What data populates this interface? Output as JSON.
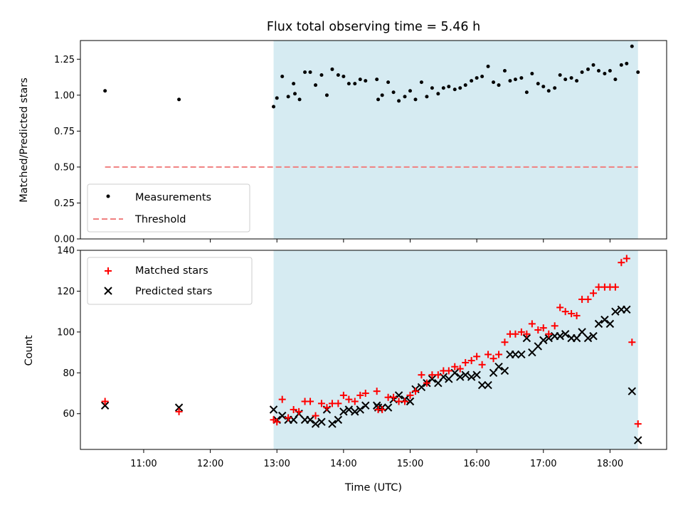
{
  "chart_data": [
    {
      "type": "scatter",
      "title": "Flux total observing time = 5.46 h",
      "xlabel": "",
      "ylabel": "Matched/Predicted stars",
      "xlim_hours": [
        10.05,
        18.85
      ],
      "ylim": [
        0,
        1.38
      ],
      "yticks": [
        0,
        0.25,
        0.5,
        0.75,
        1.0,
        1.25
      ],
      "ytick_labels": [
        "0.00",
        "0.25",
        "0.50",
        "0.75",
        "1.00",
        "1.25"
      ],
      "shaded_interval_hours": [
        12.95,
        18.42
      ],
      "threshold": {
        "name": "Threshold",
        "value": 0.5,
        "x_range_hours": [
          10.42,
          18.42
        ],
        "color": "#f08080"
      },
      "legend": {
        "location": "lower-left",
        "entries": [
          "Measurements",
          "Threshold"
        ]
      },
      "series": [
        {
          "name": "Measurements",
          "color": "#000000",
          "points": [
            [
              10.42,
              1.03
            ],
            [
              11.53,
              0.97
            ],
            [
              12.95,
              0.92
            ],
            [
              13.0,
              0.98
            ],
            [
              13.08,
              1.13
            ],
            [
              13.17,
              0.99
            ],
            [
              13.25,
              1.08
            ],
            [
              13.27,
              1.01
            ],
            [
              13.34,
              0.97
            ],
            [
              13.42,
              1.16
            ],
            [
              13.5,
              1.16
            ],
            [
              13.58,
              1.07
            ],
            [
              13.67,
              1.14
            ],
            [
              13.75,
              1.0
            ],
            [
              13.83,
              1.18
            ],
            [
              13.92,
              1.14
            ],
            [
              14.0,
              1.13
            ],
            [
              14.08,
              1.08
            ],
            [
              14.17,
              1.08
            ],
            [
              14.25,
              1.11
            ],
            [
              14.33,
              1.1
            ],
            [
              14.5,
              1.11
            ],
            [
              14.52,
              0.97
            ],
            [
              14.58,
              1.0
            ],
            [
              14.67,
              1.09
            ],
            [
              14.75,
              1.02
            ],
            [
              14.83,
              0.96
            ],
            [
              14.92,
              0.99
            ],
            [
              15.0,
              1.03
            ],
            [
              15.08,
              0.97
            ],
            [
              15.17,
              1.09
            ],
            [
              15.25,
              0.99
            ],
            [
              15.33,
              1.05
            ],
            [
              15.42,
              1.01
            ],
            [
              15.5,
              1.05
            ],
            [
              15.58,
              1.06
            ],
            [
              15.67,
              1.04
            ],
            [
              15.75,
              1.05
            ],
            [
              15.83,
              1.07
            ],
            [
              15.92,
              1.1
            ],
            [
              16.0,
              1.12
            ],
            [
              16.08,
              1.13
            ],
            [
              16.17,
              1.2
            ],
            [
              16.25,
              1.09
            ],
            [
              16.33,
              1.07
            ],
            [
              16.42,
              1.17
            ],
            [
              16.5,
              1.1
            ],
            [
              16.58,
              1.11
            ],
            [
              16.67,
              1.12
            ],
            [
              16.75,
              1.02
            ],
            [
              16.83,
              1.15
            ],
            [
              16.92,
              1.08
            ],
            [
              17.0,
              1.06
            ],
            [
              17.08,
              1.03
            ],
            [
              17.17,
              1.05
            ],
            [
              17.25,
              1.14
            ],
            [
              17.33,
              1.11
            ],
            [
              17.42,
              1.12
            ],
            [
              17.5,
              1.1
            ],
            [
              17.58,
              1.16
            ],
            [
              17.67,
              1.18
            ],
            [
              17.75,
              1.21
            ],
            [
              17.83,
              1.17
            ],
            [
              17.92,
              1.15
            ],
            [
              18.0,
              1.17
            ],
            [
              18.08,
              1.11
            ],
            [
              18.17,
              1.21
            ],
            [
              18.25,
              1.22
            ],
            [
              18.33,
              1.34
            ],
            [
              18.42,
              1.16
            ]
          ]
        }
      ]
    },
    {
      "type": "scatter",
      "title": "",
      "xlabel": "Time (UTC)",
      "ylabel": "Count",
      "xlim_hours": [
        10.05,
        18.85
      ],
      "ylim": [
        42.5,
        140
      ],
      "yticks": [
        60,
        80,
        100,
        120,
        140
      ],
      "ytick_labels": [
        "60",
        "80",
        "100",
        "120",
        "140"
      ],
      "xticks_hours": [
        11,
        12,
        13,
        14,
        15,
        16,
        17,
        18
      ],
      "xtick_labels": [
        "11:00",
        "12:00",
        "13:00",
        "14:00",
        "15:00",
        "16:00",
        "17:00",
        "18:00"
      ],
      "shaded_interval_hours": [
        12.95,
        18.42
      ],
      "legend": {
        "location": "top-left",
        "entries": [
          "Matched stars",
          "Predicted stars"
        ]
      },
      "series": [
        {
          "name": "Matched stars",
          "marker": "+",
          "color": "#ff0000",
          "points": [
            [
              10.42,
              66
            ],
            [
              11.53,
              61
            ],
            [
              12.95,
              57
            ],
            [
              13.0,
              56
            ],
            [
              13.08,
              67
            ],
            [
              13.17,
              58
            ],
            [
              13.25,
              62
            ],
            [
              13.33,
              61
            ],
            [
              13.42,
              66
            ],
            [
              13.5,
              66
            ],
            [
              13.58,
              59
            ],
            [
              13.67,
              65
            ],
            [
              13.75,
              63
            ],
            [
              13.83,
              65
            ],
            [
              13.92,
              65
            ],
            [
              14.0,
              69
            ],
            [
              14.08,
              67
            ],
            [
              14.17,
              66
            ],
            [
              14.25,
              69
            ],
            [
              14.33,
              70
            ],
            [
              14.5,
              71
            ],
            [
              14.52,
              62
            ],
            [
              14.58,
              62
            ],
            [
              14.67,
              68
            ],
            [
              14.75,
              68
            ],
            [
              14.83,
              66
            ],
            [
              14.92,
              66
            ],
            [
              15.0,
              69
            ],
            [
              15.08,
              71
            ],
            [
              15.17,
              79
            ],
            [
              15.25,
              75
            ],
            [
              15.33,
              79
            ],
            [
              15.42,
              79
            ],
            [
              15.5,
              81
            ],
            [
              15.58,
              81
            ],
            [
              15.67,
              83
            ],
            [
              15.75,
              82
            ],
            [
              15.83,
              85
            ],
            [
              15.92,
              86
            ],
            [
              16.0,
              88
            ],
            [
              16.08,
              84
            ],
            [
              16.17,
              89
            ],
            [
              16.25,
              87
            ],
            [
              16.33,
              89
            ],
            [
              16.42,
              95
            ],
            [
              16.5,
              99
            ],
            [
              16.58,
              99
            ],
            [
              16.67,
              100
            ],
            [
              16.75,
              99
            ],
            [
              16.83,
              104
            ],
            [
              16.92,
              101
            ],
            [
              17.0,
              102
            ],
            [
              17.08,
              99
            ],
            [
              17.17,
              103
            ],
            [
              17.25,
              112
            ],
            [
              17.33,
              110
            ],
            [
              17.42,
              109
            ],
            [
              17.5,
              108
            ],
            [
              17.58,
              116
            ],
            [
              17.67,
              116
            ],
            [
              17.75,
              119
            ],
            [
              17.83,
              122
            ],
            [
              17.92,
              122
            ],
            [
              18.0,
              122
            ],
            [
              18.08,
              122
            ],
            [
              18.17,
              134
            ],
            [
              18.25,
              136
            ],
            [
              18.33,
              95
            ],
            [
              18.42,
              55
            ]
          ]
        },
        {
          "name": "Predicted stars",
          "marker": "x",
          "color": "#000000",
          "points": [
            [
              10.42,
              64
            ],
            [
              11.53,
              63
            ],
            [
              12.95,
              62
            ],
            [
              13.0,
              57
            ],
            [
              13.08,
              59
            ],
            [
              13.17,
              57
            ],
            [
              13.25,
              57
            ],
            [
              13.33,
              60
            ],
            [
              13.42,
              57
            ],
            [
              13.5,
              57
            ],
            [
              13.58,
              55
            ],
            [
              13.67,
              56
            ],
            [
              13.75,
              62
            ],
            [
              13.83,
              55
            ],
            [
              13.92,
              57
            ],
            [
              14.0,
              61
            ],
            [
              14.08,
              62
            ],
            [
              14.17,
              61
            ],
            [
              14.25,
              62
            ],
            [
              14.33,
              64
            ],
            [
              14.5,
              64
            ],
            [
              14.52,
              63
            ],
            [
              14.58,
              63
            ],
            [
              14.67,
              63
            ],
            [
              14.75,
              67
            ],
            [
              14.83,
              69
            ],
            [
              14.92,
              67
            ],
            [
              15.0,
              66
            ],
            [
              15.08,
              72
            ],
            [
              15.17,
              73
            ],
            [
              15.25,
              75
            ],
            [
              15.33,
              77
            ],
            [
              15.42,
              75
            ],
            [
              15.5,
              78
            ],
            [
              15.58,
              77
            ],
            [
              15.67,
              80
            ],
            [
              15.75,
              78
            ],
            [
              15.83,
              79
            ],
            [
              15.92,
              78
            ],
            [
              16.0,
              79
            ],
            [
              16.08,
              74
            ],
            [
              16.17,
              74
            ],
            [
              16.25,
              80
            ],
            [
              16.33,
              83
            ],
            [
              16.42,
              81
            ],
            [
              16.5,
              89
            ],
            [
              16.58,
              89
            ],
            [
              16.67,
              89
            ],
            [
              16.75,
              97
            ],
            [
              16.83,
              90
            ],
            [
              16.92,
              93
            ],
            [
              17.0,
              96
            ],
            [
              17.08,
              97
            ],
            [
              17.17,
              98
            ],
            [
              17.25,
              98
            ],
            [
              17.33,
              99
            ],
            [
              17.42,
              97
            ],
            [
              17.5,
              97
            ],
            [
              17.58,
              100
            ],
            [
              17.67,
              97
            ],
            [
              17.75,
              98
            ],
            [
              17.83,
              104
            ],
            [
              17.92,
              106
            ],
            [
              18.0,
              104
            ],
            [
              18.08,
              110
            ],
            [
              18.17,
              111
            ],
            [
              18.25,
              111
            ],
            [
              18.33,
              71
            ],
            [
              18.42,
              47
            ]
          ]
        }
      ]
    }
  ]
}
